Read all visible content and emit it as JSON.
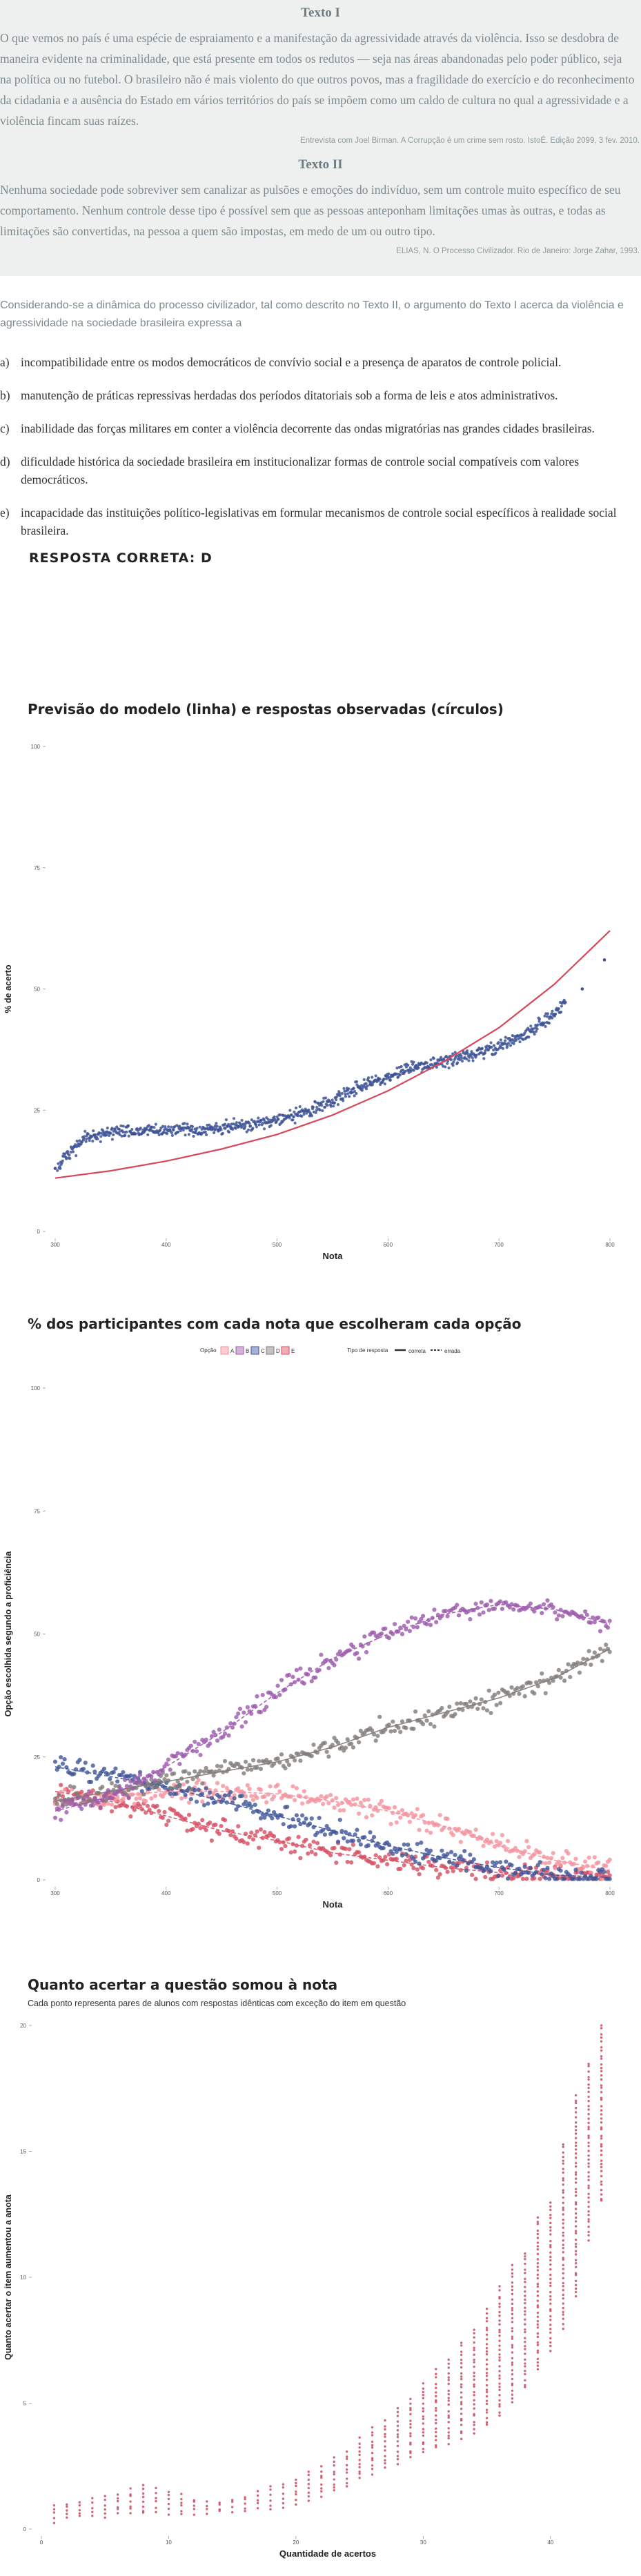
{
  "texto1": {
    "title": "Texto I",
    "body": "O que vemos no país é uma espécie de espraiamento e a manifestação da agressividade através da violência. Isso se desdobra de maneira evidente na criminalidade, que está presente em todos os redutos — seja nas áreas abandonadas pelo poder público, seja na política ou no futebol. O brasileiro não é mais violento do que outros povos, mas a fragilidade do exercício e do reconhecimento da cidadania e a ausência do Estado em vários territórios do país se impõem como um caldo de cultura no qual a agressividade e a violência fincam suas raízes.",
    "source": "Entrevista com Joel Birman. A Corrupção é um crime sem rosto. IstoÉ. Edição 2099, 3 fev. 2010."
  },
  "texto2": {
    "title": "Texto II",
    "body": "Nenhuma sociedade pode sobreviver sem canalizar as pulsões e emoções do indivíduo, sem um controle muito específico de seu comportamento. Nenhum controle desse tipo é possível sem que as pessoas anteponham limitações umas às outras, e todas as limitações são convertidas, na pessoa a quem são impostas, em medo de um ou outro tipo.",
    "source": "ELIAS, N. O Processo Civilizador. Rio de Janeiro: Jorge Zahar, 1993."
  },
  "question": {
    "stem": "Considerando-se a dinâmica do processo civilizador, tal como descrito no Texto II, o argumento do Texto I acerca da violência e agressividade na sociedade brasileira expressa a",
    "options": [
      {
        "letter": "a)",
        "text": "incompatibilidade entre os modos democráticos de convívio social e a presença de aparatos de controle policial."
      },
      {
        "letter": "b)",
        "text": "manutenção de práticas repressivas herdadas dos períodos ditatoriais sob a forma de leis e atos administrativos."
      },
      {
        "letter": "c)",
        "text": "inabilidade das forças militares em conter a violência decorrente das ondas migratórias nas grandes cidades brasileiras."
      },
      {
        "letter": "d)",
        "text": "dificuldade histórica da sociedade brasileira em institucionalizar formas de controle social compatíveis com valores democráticos."
      },
      {
        "letter": "e)",
        "text": "incapacidade das instituições político-legislativas em formular mecanismos de controle social específicos à realidade social brasileira."
      }
    ],
    "answer": "RESPOSTA CORRETA: D"
  },
  "colors": {
    "A": "#f4919c",
    "B": "#9b59ab",
    "C": "#3e5497",
    "D": "#7f7a78",
    "E": "#d64d62",
    "line": "#d6485a",
    "dot1": "#3e5497",
    "dot3": "#c74a5f"
  },
  "chart_data": [
    {
      "type": "scatter",
      "title": "Previsão do modelo (linha) e respostas observadas (círculos)",
      "xlabel": "Nota",
      "ylabel": "% de acerto",
      "xlim": [
        300,
        800
      ],
      "ylim": [
        0,
        100
      ],
      "x_ticks": [
        "300",
        "400",
        "500",
        "600",
        "700",
        "800"
      ],
      "y_ticks": [
        "0",
        "25",
        "50",
        "75",
        "100"
      ],
      "series": [
        {
          "kind": "observed",
          "x": [
            300,
            325,
            350,
            375,
            400,
            425,
            450,
            475,
            500,
            525,
            550,
            575,
            600,
            625,
            650,
            675,
            700,
            725,
            750,
            775,
            795
          ],
          "y": [
            13,
            19,
            20.5,
            20.5,
            21,
            21,
            21.5,
            22,
            23,
            24.5,
            27,
            30,
            32,
            34,
            35,
            36.5,
            38,
            41,
            45,
            50,
            56
          ]
        },
        {
          "kind": "model",
          "x": [
            300,
            350,
            400,
            450,
            500,
            550,
            600,
            650,
            700,
            750,
            800
          ],
          "y": [
            11,
            12.5,
            14.5,
            17,
            20,
            24,
            29,
            35,
            42,
            51,
            62
          ]
        }
      ]
    },
    {
      "type": "scatter",
      "title": "% dos participantes com cada nota que escolheram cada opção",
      "xlabel": "Nota",
      "ylabel": "Opção escolhida segundo a proficiência",
      "xlim": [
        300,
        800
      ],
      "ylim": [
        0,
        100
      ],
      "x_ticks": [
        "300",
        "400",
        "500",
        "600",
        "700",
        "800"
      ],
      "y_ticks": [
        "0",
        "25",
        "50",
        "75",
        "100"
      ],
      "legend": {
        "option_label": "Opção",
        "options": [
          "A",
          "B",
          "C",
          "D",
          "E"
        ],
        "type_label": "Tipo de resposta",
        "types": [
          "correta",
          "errada"
        ],
        "position": "top"
      },
      "x": [
        300,
        350,
        400,
        450,
        500,
        550,
        600,
        650,
        700,
        750,
        800
      ],
      "series": [
        {
          "name": "A",
          "values": [
            16,
            17,
            18,
            18,
            17.5,
            16,
            14,
            11,
            7,
            4,
            2
          ]
        },
        {
          "name": "B",
          "values": [
            14,
            17,
            23,
            30,
            38,
            45,
            50,
            54,
            56,
            55,
            52
          ]
        },
        {
          "name": "C",
          "values": [
            23,
            21,
            19,
            16,
            13,
            10,
            7,
            4.5,
            2.5,
            1,
            0.5
          ]
        },
        {
          "name": "D",
          "values": [
            16,
            18,
            20,
            22,
            24,
            27,
            31,
            34,
            37,
            41,
            47
          ]
        },
        {
          "name": "E",
          "values": [
            18,
            16,
            13,
            10,
            8,
            5.5,
            4,
            2.5,
            1.5,
            1,
            0.5
          ]
        }
      ]
    },
    {
      "type": "scatter",
      "title": "Quanto acertar a questão somou à nota",
      "subtitle": "Cada ponto representa pares de alunos com respostas idênticas com exceção do item em questão",
      "xlabel": "Quantidade de acertos",
      "ylabel": "Quanto acertar o item aumentou a anota",
      "xlim": [
        0,
        45
      ],
      "ylim": [
        0,
        20
      ],
      "x_ticks": [
        "0",
        "10",
        "20",
        "30",
        "40"
      ],
      "y_ticks": [
        "0",
        "5",
        "10",
        "15",
        "20"
      ],
      "x": [
        1,
        2,
        3,
        4,
        5,
        6,
        7,
        8,
        9,
        10,
        11,
        12,
        13,
        14,
        15,
        16,
        17,
        18,
        19,
        20,
        21,
        22,
        23,
        24,
        25,
        26,
        27,
        28,
        29,
        30,
        31,
        32,
        33,
        34,
        35,
        36,
        37,
        38,
        39,
        40,
        41,
        42,
        43,
        44
      ],
      "low": [
        0.3,
        0.4,
        0.5,
        0.5,
        0.5,
        0.6,
        0.6,
        0.6,
        0.7,
        0.6,
        0.6,
        0.6,
        0.6,
        0.7,
        0.7,
        0.7,
        0.8,
        0.8,
        0.9,
        1.0,
        1.1,
        1.3,
        1.5,
        1.7,
        2.0,
        2.2,
        2.4,
        2.6,
        2.8,
        3.0,
        3.2,
        3.4,
        3.6,
        3.8,
        4.1,
        4.5,
        5.0,
        5.6,
        6.3,
        7.1,
        8.0,
        9.2,
        11.5,
        13.0
      ],
      "high": [
        0.9,
        1.0,
        1.1,
        1.2,
        1.3,
        1.4,
        1.6,
        1.7,
        1.6,
        1.5,
        1.4,
        1.2,
        1.1,
        1.1,
        1.2,
        1.3,
        1.5,
        1.7,
        1.8,
        2.0,
        2.3,
        2.5,
        2.8,
        3.1,
        3.6,
        4.0,
        4.3,
        4.8,
        5.2,
        5.8,
        6.3,
        6.7,
        7.4,
        7.9,
        8.7,
        9.6,
        10.5,
        11.0,
        12.4,
        13.0,
        15.3,
        17.2,
        18.5,
        20.0
      ]
    }
  ]
}
